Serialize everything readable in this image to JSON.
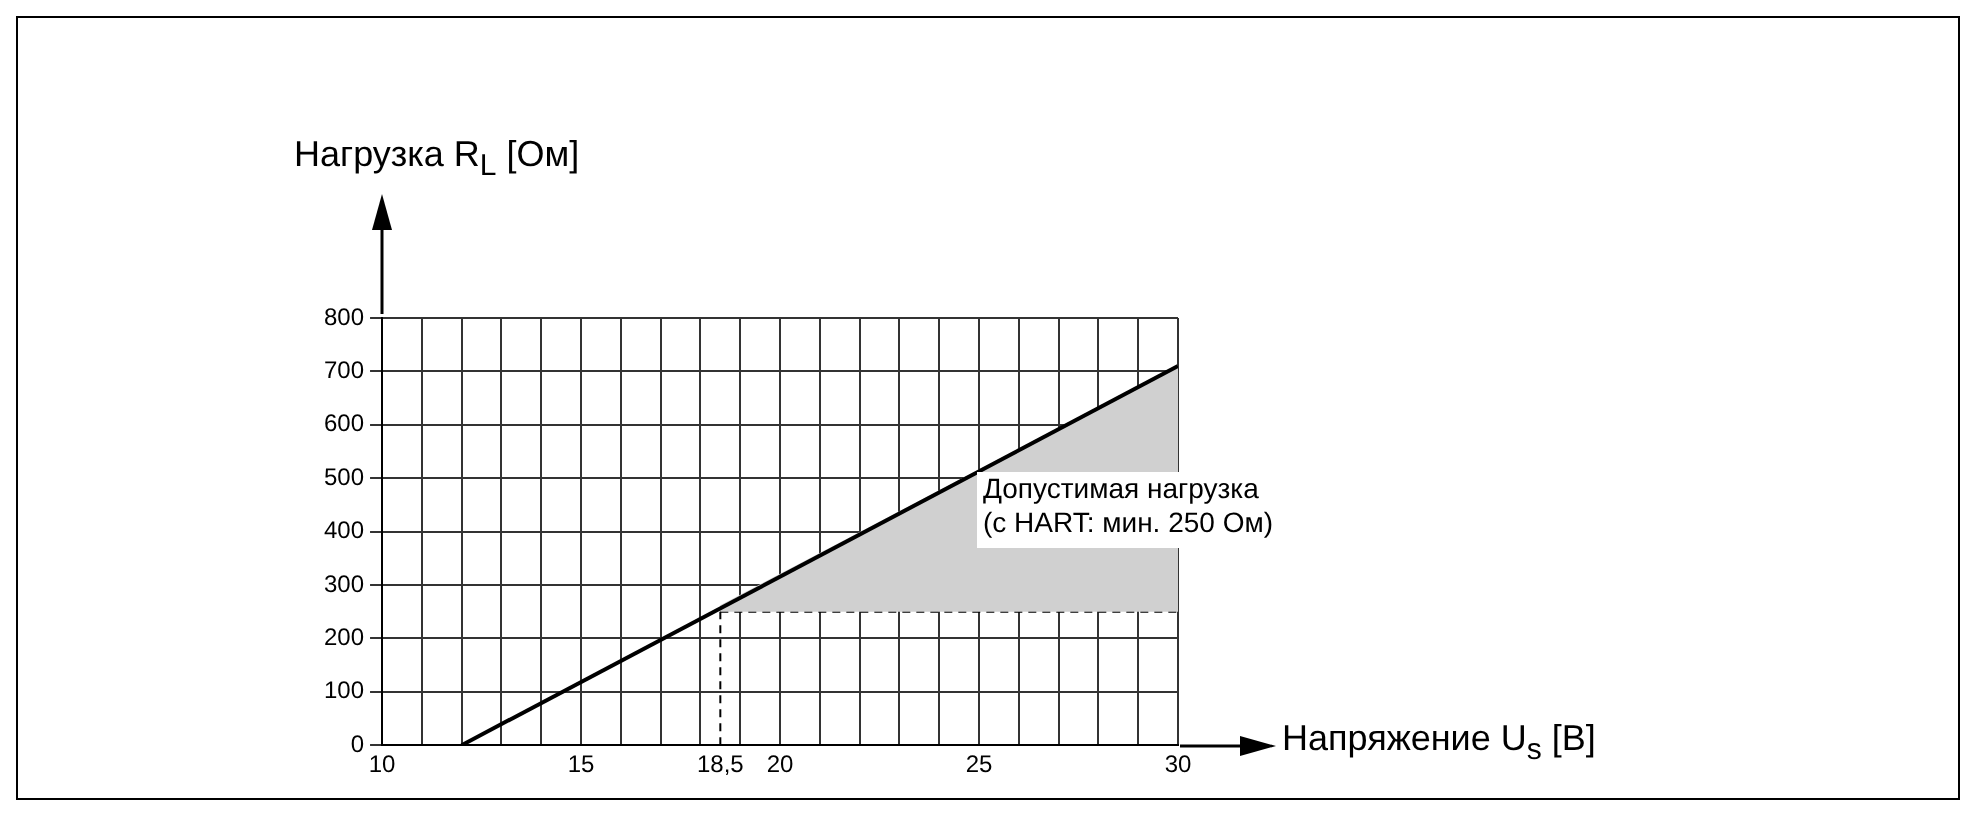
{
  "chart_data": {
    "type": "line",
    "xlabel": "Напряжение U$_{s}$ [В]",
    "ylabel": "Нагрузка R$_{L}$ [Ом]",
    "series": [
      {
        "color": "#000000",
        "x": [
          12,
          30
        ],
        "values": [
          0,
          710
        ]
      },
      {
        "type": "area",
        "color": "#d0d0d0",
        "x": [
          18.5,
          30
        ],
        "values": [
          260,
          710
        ]
      }
    ],
    "xlim": [
      10,
      30
    ],
    "ylim": [
      0,
      800
    ],
    "xticks": [
      10,
      {
        "value": 11,
        "label": null
      },
      {
        "value": 12,
        "label": null
      },
      {
        "value": 13,
        "label": null
      },
      {
        "value": 14,
        "label": null
      },
      15,
      {
        "value": 16,
        "label": null
      },
      {
        "value": 17,
        "label": null
      },
      {
        "value": 18,
        "label": null
      },
      {
        "value": 19,
        "label": null
      },
      20,
      {
        "value": 21,
        "label": null
      },
      {
        "value": 22,
        "label": null
      },
      {
        "value": 23,
        "label": null
      },
      {
        "value": 24,
        "label": null
      },
      25,
      {
        "value": 26,
        "label": null
      },
      {
        "value": 27,
        "label": null
      },
      {
        "value": 28,
        "label": null
      },
      {
        "value": 29,
        "label": null
      },
      30
    ],
    "yticks": [
      0,
      100,
      200,
      300,
      400,
      500,
      600,
      700,
      800
    ],
    "grid": true,
    "marker": "none",
    "ref_lines": [
      {
        "axis": "x",
        "value": 18.5,
        "label": "18,5",
        "line_style": "dashed"
      },
      {
        "axis": "y",
        "value": 250,
        "label": null,
        "line_style": "dashed"
      }
    ],
    "annotations": [
      "Допустимая нагрузка\n(с HART: мин. 250 Ом)"
    ]
  }
}
